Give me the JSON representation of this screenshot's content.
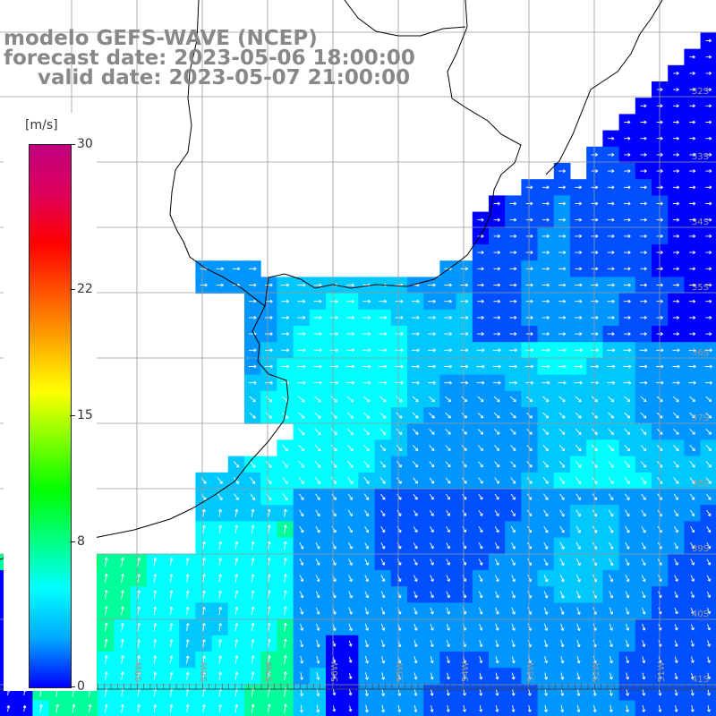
{
  "title": {
    "line1": "modelo GEFS-WAVE (NCEP)",
    "line2": "forecast date: 2023-05-06 18:00:00",
    "line3": "valid date: 2023-05-07 21:00:00"
  },
  "colorbar": {
    "unit": "[m/s]",
    "min": 0,
    "max": 30,
    "ticks": [
      "30",
      "22",
      "15",
      "8",
      "0"
    ],
    "tick_values": [
      30,
      22,
      15,
      8,
      0
    ],
    "colors": [
      "#0000ff",
      "#00aaff",
      "#00ffff",
      "#00ff80",
      "#00ff00",
      "#80ff00",
      "#ffff00",
      "#ffaa00",
      "#ff5500",
      "#ff0000",
      "#e0005a",
      "#c0007f"
    ]
  },
  "lat_labels": [
    "32S",
    "33S",
    "34S",
    "35S",
    "36S",
    "37S",
    "38S",
    "39S",
    "40S",
    "41S"
  ],
  "lon_labels": [
    "61W",
    "60W",
    "59W",
    "58W",
    "57W",
    "56W",
    "55W",
    "54W",
    "53W",
    "52W",
    "51W"
  ],
  "colors": {
    "land": "#ffffff",
    "grid": "#9a9a9a",
    "coast": "#000000",
    "arrow": "#ffffff",
    "title": "#888888"
  }
}
